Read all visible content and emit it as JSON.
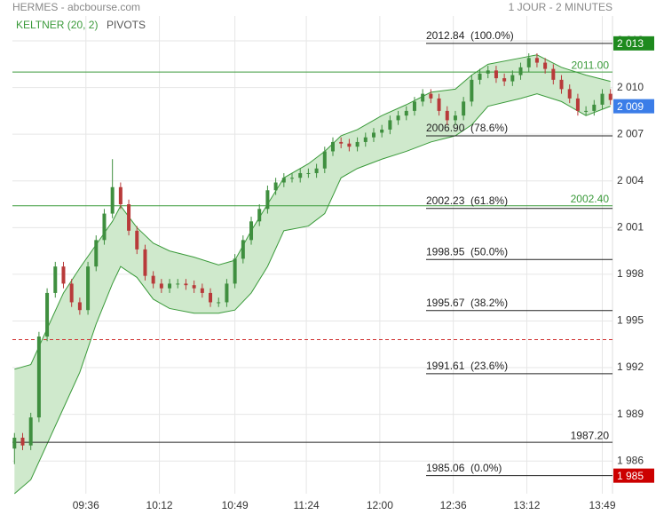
{
  "chart_data": {
    "type": "candlestick",
    "title": "HERMES - abcbourse.com",
    "period": "1 JOUR - 2 MINUTES",
    "indicators": "PIVOTS",
    "up_color": "#3f8f3f",
    "down_color": "#b83a3a",
    "x": [
      "09:01",
      "09:05",
      "09:09",
      "09:13",
      "09:17",
      "09:21",
      "09:25",
      "09:29",
      "09:33",
      "09:37",
      "09:41",
      "09:45",
      "09:49",
      "09:53",
      "09:57",
      "10:01",
      "10:05",
      "10:09",
      "10:13",
      "10:17",
      "10:21",
      "10:25",
      "10:29",
      "10:33",
      "10:37",
      "10:41",
      "10:45",
      "10:49",
      "10:53",
      "10:57",
      "11:01",
      "11:05",
      "11:09",
      "11:13",
      "11:17",
      "11:21",
      "11:25",
      "11:29",
      "11:33",
      "11:37",
      "11:41",
      "11:45",
      "11:49",
      "11:53",
      "11:57",
      "12:01",
      "12:05",
      "12:09",
      "12:13",
      "12:17",
      "12:21",
      "12:25",
      "12:29",
      "12:33",
      "12:37",
      "12:41",
      "12:45",
      "12:49",
      "12:53",
      "12:57",
      "13:01",
      "13:05",
      "13:09",
      "13:13",
      "13:17",
      "13:21",
      "13:25",
      "13:29",
      "13:33",
      "13:37",
      "13:41",
      "13:45",
      "13:49",
      "13:53"
    ],
    "open": [
      1986.8,
      1987.5,
      1987.0,
      1988.8,
      1994.0,
      1996.8,
      1998.5,
      1997.4,
      1996.2,
      1995.7,
      1998.5,
      2000.2,
      2001.9,
      2003.6,
      2002.5,
      2000.8,
      1999.6,
      1997.9,
      1997.4,
      1997.1,
      1997.4,
      1997.4,
      1997.3,
      1997.1,
      1996.8,
      1996.2,
      1996.2,
      1997.4,
      1999.0,
      2000.2,
      2001.4,
      2002.2,
      2003.4,
      2003.9,
      2004.2,
      2004.2,
      2004.5,
      2004.5,
      2004.8,
      2005.9,
      2006.5,
      2006.4,
      2006.2,
      2006.5,
      2006.8,
      2007.1,
      2007.3,
      2007.9,
      2008.2,
      2008.5,
      2009.1,
      2009.6,
      2009.3,
      2008.5,
      2007.9,
      2008.2,
      2009.1,
      2010.5,
      2010.9,
      2011.1,
      2010.6,
      2010.4,
      2010.8,
      2011.3,
      2011.9,
      2011.6,
      2011.2,
      2010.5,
      2009.9,
      2009.3,
      2008.5,
      2008.5,
      2008.9,
      2009.6
    ],
    "high": [
      1987.8,
      1987.8,
      1989.1,
      1994.3,
      1997.1,
      1998.8,
      1998.8,
      1997.7,
      1996.5,
      1998.8,
      2000.5,
      2002.2,
      2005.4,
      2003.9,
      2002.8,
      2001.1,
      1999.9,
      1998.2,
      1997.7,
      1997.7,
      1997.7,
      1997.7,
      1997.6,
      1997.4,
      1997.1,
      1996.5,
      1997.7,
      1999.3,
      2000.5,
      2001.7,
      2002.5,
      2003.7,
      2004.2,
      2004.5,
      2004.5,
      2004.8,
      2004.8,
      2005.1,
      2006.2,
      2006.8,
      2006.8,
      2006.7,
      2006.8,
      2007.1,
      2007.4,
      2007.6,
      2008.2,
      2008.5,
      2008.8,
      2009.4,
      2009.9,
      2009.9,
      2009.6,
      2008.8,
      2008.5,
      2009.4,
      2010.8,
      2011.2,
      2011.4,
      2011.4,
      2010.9,
      2011.1,
      2011.6,
      2012.2,
      2012.2,
      2011.9,
      2011.5,
      2010.8,
      2010.2,
      2009.6,
      2008.8,
      2009.2,
      2009.9,
      2009.9
    ],
    "low": [
      1985.8,
      1986.7,
      1986.7,
      1988.5,
      1993.7,
      1996.5,
      1997.1,
      1995.9,
      1995.4,
      1995.4,
      1998.2,
      1999.9,
      2001.6,
      2002.2,
      2000.5,
      1999.3,
      1997.6,
      1997.1,
      1996.8,
      1996.8,
      1997.1,
      1997.0,
      1996.8,
      1996.5,
      1995.9,
      1995.9,
      1995.9,
      1997.1,
      1998.7,
      1999.9,
      2001.1,
      2001.9,
      2003.1,
      2003.6,
      2003.9,
      2003.9,
      2004.2,
      2004.2,
      2004.5,
      2005.6,
      2006.1,
      2005.9,
      2005.9,
      2006.2,
      2006.5,
      2006.8,
      2007.0,
      2007.6,
      2007.9,
      2008.2,
      2008.8,
      2009.0,
      2008.2,
      2007.6,
      2007.6,
      2007.9,
      2008.8,
      2010.2,
      2010.6,
      2010.3,
      2010.1,
      2010.1,
      2010.5,
      2011.0,
      2011.3,
      2010.9,
      2010.2,
      2009.6,
      2009.0,
      2008.2,
      2008.2,
      2008.2,
      2008.6,
      2008.9
    ],
    "close": [
      1987.5,
      1987.0,
      1988.8,
      1994.0,
      1996.8,
      1998.5,
      1997.4,
      1996.2,
      1995.7,
      1998.5,
      2000.2,
      2001.9,
      2003.6,
      2002.5,
      2000.8,
      1999.6,
      1997.9,
      1997.4,
      1997.1,
      1997.4,
      1997.4,
      1997.3,
      1997.1,
      1996.8,
      1996.2,
      1996.2,
      1997.4,
      1999.0,
      2000.2,
      2001.4,
      2002.2,
      2003.4,
      2003.9,
      2004.2,
      2004.2,
      2004.5,
      2004.5,
      2004.8,
      2005.9,
      2006.5,
      2006.4,
      2006.2,
      2006.5,
      2006.8,
      2007.1,
      2007.3,
      2007.9,
      2008.2,
      2008.5,
      2009.1,
      2009.6,
      2009.3,
      2008.5,
      2007.9,
      2008.2,
      2009.1,
      2010.5,
      2010.9,
      2011.1,
      2010.6,
      2010.4,
      2010.8,
      2011.3,
      2011.9,
      2011.6,
      2011.2,
      2010.5,
      2009.9,
      2009.3,
      2008.5,
      2008.5,
      2008.9,
      2009.6,
      2009.2
    ],
    "keltner": {
      "name": "KELTNER (20, 2)",
      "color": "#3a9a3a",
      "fill": "#cfe9cc",
      "x": [
        "09:01",
        "09:09",
        "09:17",
        "09:25",
        "09:33",
        "09:41",
        "09:49",
        "09:53",
        "10:01",
        "10:09",
        "10:17",
        "10:29",
        "10:41",
        "10:49",
        "10:57",
        "11:05",
        "11:13",
        "11:25",
        "11:33",
        "11:41",
        "11:49",
        "12:01",
        "12:13",
        "12:25",
        "12:37",
        "12:45",
        "12:53",
        "13:09",
        "13:17",
        "13:29",
        "13:41",
        "13:53"
      ],
      "upper": [
        1991.9,
        1992.2,
        1994.5,
        1996.8,
        1998.4,
        1999.9,
        2001.4,
        2002.4,
        2001.0,
        2000.0,
        1999.5,
        1999.1,
        1998.6,
        1998.9,
        2000.8,
        2002.5,
        2004.2,
        2005.1,
        2005.9,
        2006.9,
        2007.3,
        2008.2,
        2008.9,
        2009.7,
        2009.9,
        2010.8,
        2011.5,
        2011.9,
        2012.1,
        2011.3,
        2010.8,
        2010.4
      ],
      "lower": [
        1983.9,
        1984.8,
        1987.1,
        1989.4,
        1991.7,
        1994.8,
        1997.4,
        1998.5,
        1997.8,
        1996.4,
        1995.8,
        1995.5,
        1995.5,
        1995.7,
        1996.8,
        1998.5,
        2000.8,
        2001.1,
        2001.9,
        2004.2,
        2004.8,
        2005.4,
        2005.9,
        2006.5,
        2006.9,
        2007.6,
        2008.8,
        2009.3,
        2009.6,
        2009.1,
        2008.2,
        2008.8
      ]
    },
    "fib_levels": [
      {
        "value": 2012.84,
        "label": "2012.84  (100.0%)"
      },
      {
        "value": 2006.9,
        "label": "2006.90  (78.6%)"
      },
      {
        "value": 2002.23,
        "label": "2002.23  (61.8%)"
      },
      {
        "value": 1998.95,
        "label": "1998.95  (50.0%)"
      },
      {
        "value": 1995.67,
        "label": "1995.67  (38.2%)"
      },
      {
        "value": 1991.61,
        "label": "1991.61  (23.6%)"
      },
      {
        "value": 1985.06,
        "label": "1985.06  (0.0%)"
      }
    ],
    "pivots": [
      {
        "value": 2011.0,
        "label": "2011.00",
        "color": "#3a9a3a"
      },
      {
        "value": 2002.4,
        "label": "2002.40",
        "color": "#3a9a3a"
      },
      {
        "value": 1987.2,
        "label": "1987.20",
        "color": "#222222"
      }
    ],
    "dashed_level": {
      "value": 1993.8,
      "color": "#d03030"
    },
    "price_tags": [
      {
        "value": 2012.84,
        "label": "2 013",
        "color": "#1e8a1e"
      },
      {
        "value": 2008.8,
        "label": "2 009",
        "color": "#3b7de8"
      },
      {
        "value": 1985.06,
        "label": "1 985",
        "color": "#cc0000"
      }
    ],
    "xlim": [
      "09:00",
      "13:54"
    ],
    "xticks": [
      "09:36",
      "10:12",
      "10:49",
      "11:24",
      "12:00",
      "12:36",
      "13:12",
      "13:49"
    ],
    "ylim": [
      1983.9,
      2014.6
    ],
    "yticks": [
      {
        "value": 2013,
        "label": "2 013"
      },
      {
        "value": 2010,
        "label": "2 010"
      },
      {
        "value": 2007,
        "label": "2 007"
      },
      {
        "value": 2004,
        "label": "2 004"
      },
      {
        "value": 2001,
        "label": "2 001"
      },
      {
        "value": 1998,
        "label": "1 998"
      },
      {
        "value": 1995,
        "label": "1 995"
      },
      {
        "value": 1992,
        "label": "1 992"
      },
      {
        "value": 1989,
        "label": "1 989"
      },
      {
        "value": 1986,
        "label": "1 986"
      }
    ],
    "grid": true
  }
}
